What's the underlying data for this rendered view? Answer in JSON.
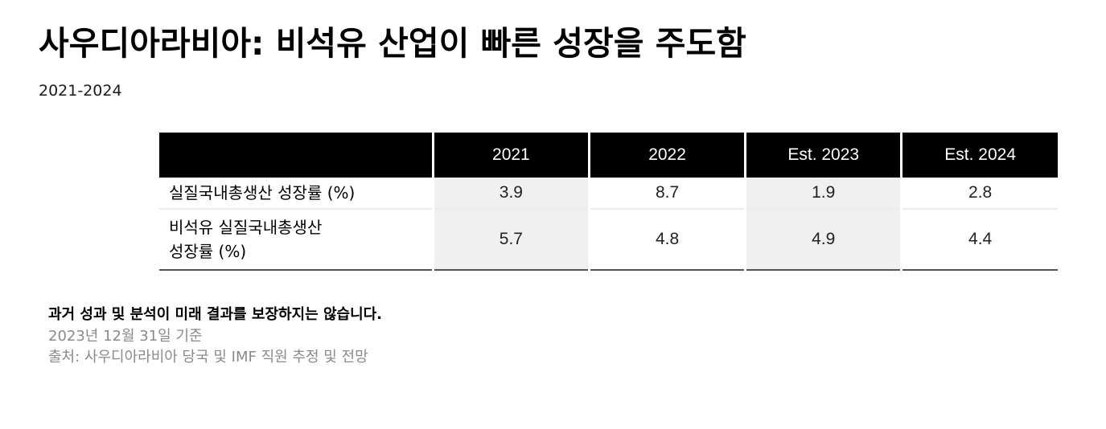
{
  "title": "사우디아라비아: 비석유 산업이 빠른 성장을 주도함",
  "subtitle": "2021-2024",
  "table": {
    "header": [
      "",
      "2021",
      "2022",
      "Est. 2023",
      "Est. 2024"
    ],
    "rows": [
      {
        "label": "실질국내총생산 성장률 (%)",
        "values": [
          "3.9",
          "8.7",
          "1.9",
          "2.8"
        ]
      },
      {
        "label_line1": "비석유 실질국내총생산",
        "label_line2": "성장률 (%)",
        "values": [
          "5.7",
          "4.8",
          "4.9",
          "4.4"
        ]
      }
    ]
  },
  "notes": {
    "disclaimer": "과거 성과 및 분석이 미래 결과를 보장하지는 않습니다.",
    "date": "2023년 12월 31일 기준",
    "source": "출처: 사우디아라비아 당국 및 IMF 직원 추정 및 전망"
  },
  "chart_data": {
    "type": "table",
    "title": "사우디아라비아: 비석유 산업이 빠른 성장을 주도함",
    "subtitle": "2021-2024",
    "columns": [
      "2021",
      "2022",
      "Est. 2023",
      "Est. 2024"
    ],
    "series": [
      {
        "name": "실질국내총생산 성장률 (%)",
        "values": [
          3.9,
          8.7,
          1.9,
          2.8
        ]
      },
      {
        "name": "비석유 실질국내총생산 성장률 (%)",
        "values": [
          5.7,
          4.8,
          4.9,
          4.4
        ]
      }
    ]
  }
}
